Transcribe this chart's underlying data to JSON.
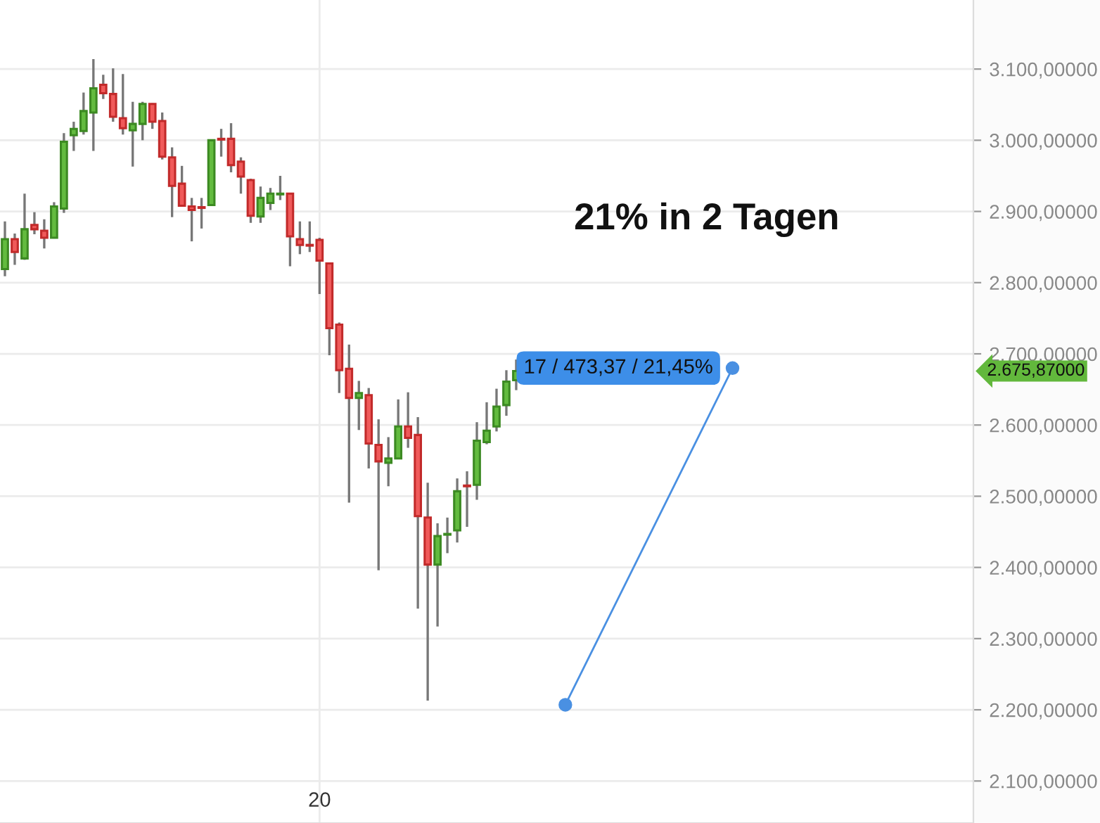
{
  "chart_data": {
    "type": "candlestick",
    "categories": [
      null,
      null,
      null,
      null,
      null,
      null,
      null,
      null,
      null,
      null,
      null,
      null,
      null,
      null,
      null,
      null,
      null,
      null,
      null,
      null,
      null,
      null,
      null,
      null,
      null,
      null,
      null,
      null,
      null,
      null,
      null,
      null,
      "20",
      null,
      null,
      null,
      null,
      null,
      null,
      null,
      null,
      null,
      null,
      null,
      null,
      null,
      null,
      null,
      null,
      null,
      null,
      null,
      null,
      null,
      null,
      null,
      null,
      null,
      null,
      null,
      null,
      null,
      null,
      null,
      null,
      null,
      null,
      null,
      null,
      null,
      null,
      null,
      null,
      null,
      null,
      null,
      null,
      null,
      null,
      null,
      null,
      null,
      null,
      null,
      null,
      null,
      null,
      null,
      null,
      null,
      null,
      null,
      null,
      null,
      null,
      null,
      null,
      null,
      null
    ],
    "ohlc": [
      [
        2819,
        2886,
        2809,
        2861
      ],
      [
        2861,
        2869,
        2825,
        2843
      ],
      [
        2834,
        2925,
        2832,
        2875
      ],
      [
        2881,
        2899,
        2868,
        2875
      ],
      [
        2873,
        2889,
        2848,
        2863
      ],
      [
        2863,
        2913,
        2862,
        2907
      ],
      [
        2904,
        3010,
        2898,
        2998
      ],
      [
        3007,
        3026,
        2985,
        3016
      ],
      [
        3013,
        3067,
        3008,
        3041
      ],
      [
        3039,
        3114,
        2985,
        3073
      ],
      [
        3078,
        3092,
        3058,
        3066
      ],
      [
        3065,
        3101,
        3026,
        3033
      ],
      [
        3031,
        3093,
        3008,
        3017
      ],
      [
        3014,
        3054,
        2963,
        3023
      ],
      [
        3023,
        3054,
        3000,
        3051
      ],
      [
        3051,
        3052,
        3016,
        3026
      ],
      [
        3027,
        3039,
        2973,
        2977
      ],
      [
        2976,
        2990,
        2892,
        2936
      ],
      [
        2939,
        2964,
        2907,
        2908
      ],
      [
        2907,
        2919,
        2858,
        2902
      ],
      [
        2906,
        2919,
        2876,
        2905
      ],
      [
        2909,
        3001,
        2908,
        3000
      ],
      [
        3002,
        3016,
        2977,
        3001
      ],
      [
        3002,
        3024,
        2955,
        2965
      ],
      [
        2970,
        2976,
        2925,
        2949
      ],
      [
        2944,
        2946,
        2884,
        2894
      ],
      [
        2893,
        2935,
        2884,
        2919
      ],
      [
        2912,
        2933,
        2902,
        2925
      ],
      [
        2924,
        2950,
        2916,
        2925
      ],
      [
        2925,
        2926,
        2823,
        2865
      ],
      [
        2861,
        2886,
        2840,
        2853
      ],
      [
        2853,
        2886,
        2843,
        2852
      ],
      [
        2860,
        2863,
        2784,
        2831
      ],
      [
        2827,
        2828,
        2698,
        2736
      ],
      [
        2741,
        2744,
        2645,
        2677
      ],
      [
        2679,
        2713,
        2491,
        2638
      ],
      [
        2638,
        2662,
        2593,
        2645
      ],
      [
        2642,
        2652,
        2539,
        2574
      ],
      [
        2572,
        2608,
        2396,
        2549
      ],
      [
        2547,
        2583,
        2514,
        2553
      ],
      [
        2553,
        2636,
        2552,
        2598
      ],
      [
        2598,
        2646,
        2568,
        2582
      ],
      [
        2586,
        2611,
        2342,
        2472
      ],
      [
        2470,
        2519,
        2213,
        2404
      ],
      [
        2404,
        2462,
        2317,
        2444
      ],
      [
        2446,
        2470,
        2420,
        2447
      ],
      [
        2452,
        2525,
        2435,
        2507
      ],
      [
        2515,
        2535,
        2457,
        2514
      ],
      [
        2516,
        2604,
        2495,
        2578
      ],
      [
        2576,
        2632,
        2573,
        2592
      ],
      [
        2598,
        2651,
        2591,
        2626
      ],
      [
        2628,
        2677,
        2613,
        2661
      ],
      [
        2663,
        2692,
        2649,
        2675.87
      ],
      null,
      null,
      null,
      null,
      null,
      null,
      null,
      null,
      null,
      null,
      null,
      null,
      null,
      null,
      null,
      null,
      null,
      null,
      null,
      null,
      null,
      null,
      null,
      null,
      null,
      null,
      null,
      null,
      null,
      null,
      null,
      null,
      null,
      null,
      null,
      null,
      null,
      null,
      null,
      null,
      null,
      null,
      null,
      null,
      null,
      null
    ],
    "series": [
      {
        "type": "line",
        "color": "#4a90e2",
        "marker": "circle",
        "values": [
          null,
          null,
          null,
          null,
          null,
          null,
          null,
          null,
          null,
          null,
          null,
          null,
          null,
          null,
          null,
          null,
          null,
          null,
          null,
          null,
          null,
          null,
          null,
          null,
          null,
          null,
          null,
          null,
          null,
          null,
          null,
          null,
          null,
          null,
          null,
          null,
          null,
          null,
          null,
          null,
          null,
          null,
          null,
          null,
          null,
          null,
          null,
          null,
          null,
          null,
          null,
          null,
          null,
          null,
          null,
          null,
          null,
          2207,
          null,
          null,
          null,
          null,
          null,
          null,
          null,
          null,
          null,
          null,
          null,
          null,
          null,
          null,
          null,
          null,
          2680,
          null,
          null,
          null,
          null,
          null,
          null,
          null,
          null,
          null,
          null,
          null,
          null,
          null,
          null,
          null,
          null,
          null,
          null,
          null,
          null,
          null,
          null,
          null,
          null
        ]
      }
    ],
    "ylim": [
      2041,
      3197
    ],
    "yticks": [
      {
        "value": 2100,
        "label": "2.100,00000"
      },
      {
        "value": 2200,
        "label": "2.200,00000"
      },
      {
        "value": 2300,
        "label": "2.300,00000"
      },
      {
        "value": 2400,
        "label": "2.400,00000"
      },
      {
        "value": 2500,
        "label": "2.500,00000"
      },
      {
        "value": 2600,
        "label": "2.600,00000"
      },
      {
        "value": 2700,
        "label": "2.700,00000"
      },
      {
        "value": 2800,
        "label": "2.800,00000"
      },
      {
        "value": 2900,
        "label": "2.900,00000"
      },
      {
        "value": 3000,
        "label": "3.000,00000"
      },
      {
        "value": 3100,
        "label": "3.100,00000"
      }
    ],
    "grid": true,
    "annotations": [
      "21% in 2 Tagen",
      "17 / 473,37 / 21,45%",
      "2.675,87000"
    ]
  }
}
